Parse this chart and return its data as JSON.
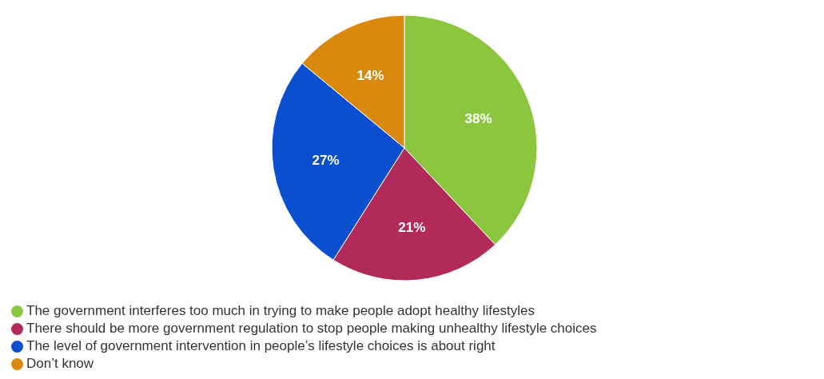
{
  "chart_data": {
    "type": "pie",
    "categories": [
      "The government interferes too much in trying to make people adopt healthy lifestyles",
      "There should be more government regulation to stop people making unhealthy lifestyle choices",
      "The level of government intervention in people’s lifestyle choices is about right",
      "Don’t know"
    ],
    "values": [
      38,
      21,
      27,
      14
    ],
    "value_labels": [
      "38%",
      "21%",
      "27%",
      "14%"
    ],
    "colors": [
      "#8cc63f",
      "#b22a59",
      "#0b4fd1",
      "#d98a0e"
    ],
    "legend": "bottom left"
  }
}
